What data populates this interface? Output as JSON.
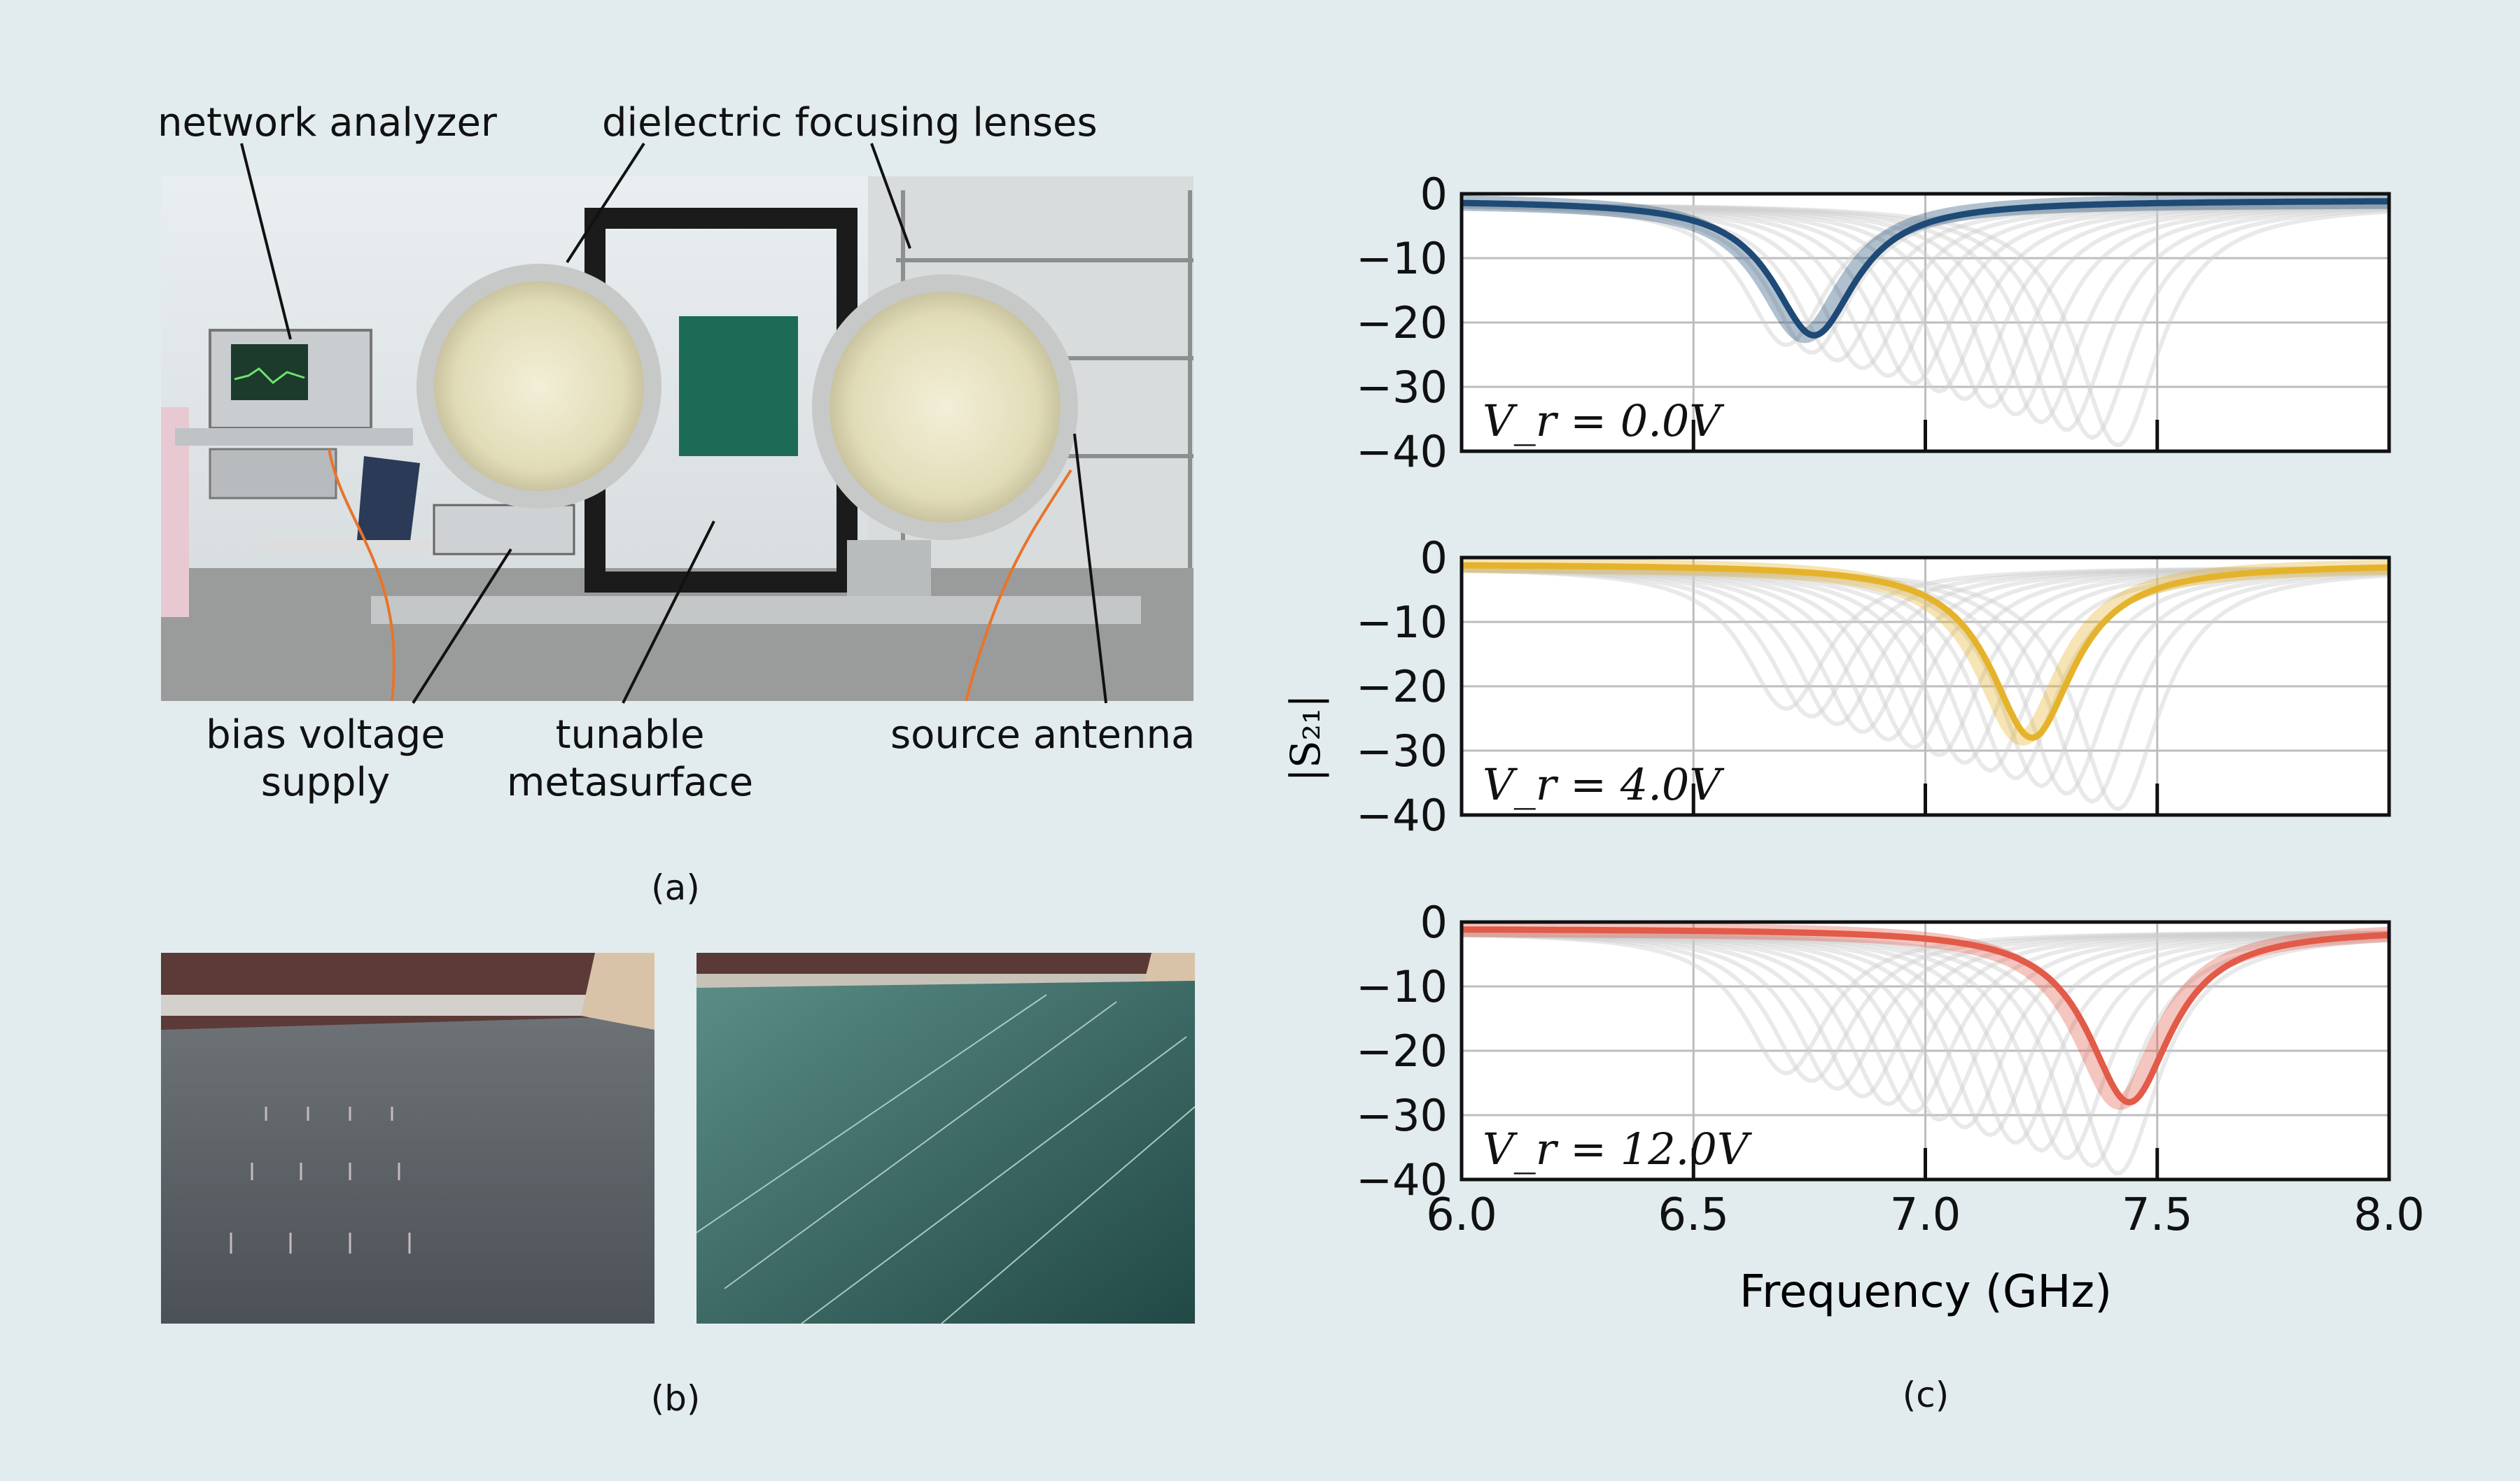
{
  "panel_a": {
    "labels": {
      "network_analyzer": "network analyzer",
      "lenses": "dielectric focusing lenses",
      "bias_line1": "bias voltage",
      "bias_line2": "supply",
      "tunable_line1": "tunable",
      "tunable_line2": "metasurface",
      "source_antenna": "source antenna"
    },
    "caption": "(a)"
  },
  "panel_b": {
    "caption": "(b)"
  },
  "panel_c": {
    "caption": "(c)",
    "ylabel": "|S₂₁|",
    "xlabel": "Frequency (GHz)"
  },
  "colors": {
    "background": "#e2ecee",
    "blue": "#1e4a75",
    "yellow": "#e5b32b",
    "red": "#e25a48",
    "gray": "#cfcfcf"
  },
  "chart_data": [
    {
      "type": "line",
      "annotation": "V_r = 0.0V",
      "ylim": [
        -40,
        0
      ],
      "xlim": [
        6.0,
        8.0
      ],
      "yticks": [
        0,
        -10,
        -20,
        -30,
        -40
      ],
      "series": [
        {
          "color": "#1e4a75",
          "resonance_ghz": 6.76,
          "min_db": -22
        }
      ]
    },
    {
      "type": "line",
      "annotation": "V_r = 4.0V",
      "ylim": [
        -40,
        0
      ],
      "xlim": [
        6.0,
        8.0
      ],
      "yticks": [
        0,
        -10,
        -20,
        -30,
        -40
      ],
      "series": [
        {
          "color": "#e5b32b",
          "resonance_ghz": 7.23,
          "min_db": -28
        }
      ]
    },
    {
      "type": "line",
      "annotation": "V_r = 12.0V",
      "ylim": [
        -40,
        0
      ],
      "xlim": [
        6.0,
        8.0
      ],
      "yticks": [
        0,
        -10,
        -20,
        -30,
        -40
      ],
      "xticks": [
        "6.0",
        "6.5",
        "7.0",
        "7.5",
        "8.0"
      ],
      "series": [
        {
          "color": "#e25a48",
          "resonance_ghz": 7.44,
          "min_db": -28
        }
      ]
    }
  ]
}
